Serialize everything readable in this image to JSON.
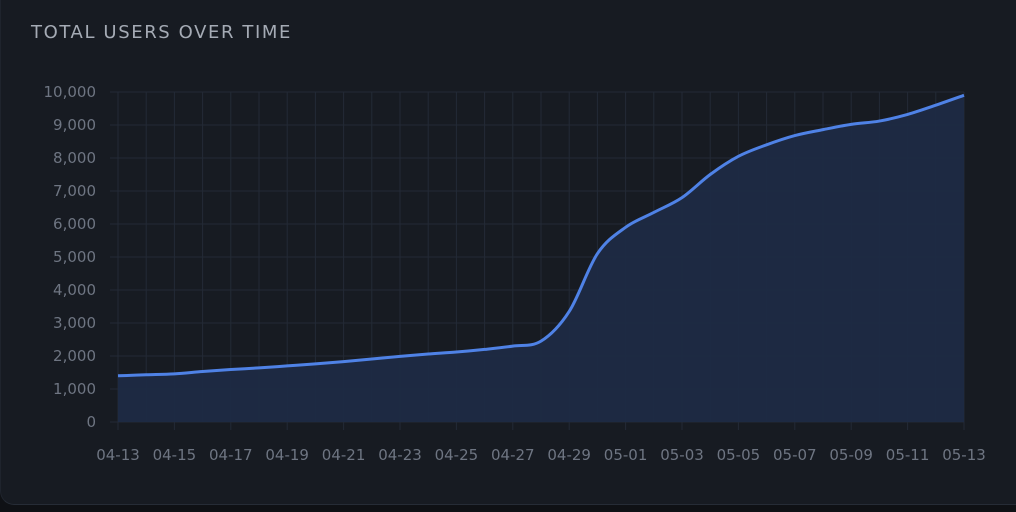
{
  "panel": {
    "title": "TOTAL USERS OVER TIME"
  },
  "colors": {
    "line": "#4f82e6",
    "area": "#1e2a44",
    "grid": "#232a36",
    "panel": "#171b22",
    "text": "#6e7582"
  },
  "chart_data": {
    "type": "area",
    "title": "TOTAL USERS OVER TIME",
    "xlabel": "",
    "ylabel": "",
    "grid": true,
    "ylim": [
      0,
      10000
    ],
    "y_ticks": [
      "0",
      "1,000",
      "2,000",
      "3,000",
      "4,000",
      "5,000",
      "6,000",
      "7,000",
      "8,000",
      "9,000",
      "10,000"
    ],
    "x_ticks": [
      "04-13",
      "04-15",
      "04-17",
      "04-19",
      "04-21",
      "04-23",
      "04-25",
      "04-27",
      "04-29",
      "05-01",
      "05-03",
      "05-05",
      "05-07",
      "05-09",
      "05-11",
      "05-13"
    ],
    "x": [
      "04-13",
      "04-14",
      "04-15",
      "04-16",
      "04-17",
      "04-18",
      "04-19",
      "04-20",
      "04-21",
      "04-22",
      "04-23",
      "04-24",
      "04-25",
      "04-26",
      "04-27",
      "04-28",
      "04-29",
      "04-30",
      "05-01",
      "05-02",
      "05-03",
      "05-04",
      "05-05",
      "05-06",
      "05-07",
      "05-08",
      "05-09",
      "05-10",
      "05-11",
      "05-12",
      "05-13"
    ],
    "series": [
      {
        "values": [
          1400,
          1430,
          1460,
          1530,
          1590,
          1640,
          1700,
          1760,
          1830,
          1910,
          1990,
          2060,
          2120,
          2200,
          2300,
          2450,
          3350,
          5100,
          5900,
          6350,
          6800,
          7500,
          8050,
          8400,
          8680,
          8860,
          9020,
          9120,
          9320,
          9600,
          9900
        ]
      }
    ]
  }
}
